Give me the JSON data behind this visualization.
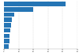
{
  "values": [
    42000000,
    20000000,
    7000000,
    5500000,
    4800000,
    4200000,
    3800000,
    3500000,
    3200000
  ],
  "bar_color": "#2575b5",
  "background_color": "#ffffff",
  "grid_color": "#cccccc",
  "xlim": [
    0,
    50000000
  ],
  "xticks": [
    0,
    10000000,
    20000000,
    30000000,
    40000000,
    50000000
  ]
}
